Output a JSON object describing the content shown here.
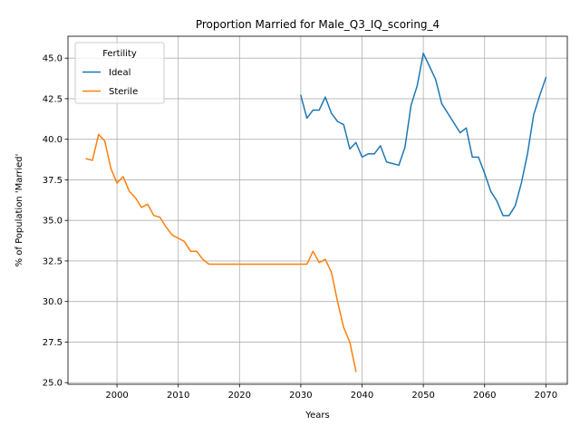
{
  "chart_data": {
    "type": "line",
    "title": "Proportion Married for Male_Q3_IQ_scoring_4",
    "xlabel": "Years",
    "ylabel": "% of Population 'Married'",
    "xlim": [
      1992,
      2073.5
    ],
    "ylim": [
      24.9,
      46.35
    ],
    "grid": true,
    "legend": {
      "title": "Fertility",
      "placement": "top-left"
    },
    "x_ticks": [
      2000,
      2010,
      2020,
      2030,
      2040,
      2050,
      2060,
      2070
    ],
    "y_ticks": [
      25.0,
      27.5,
      30.0,
      32.5,
      35.0,
      37.5,
      40.0,
      42.5,
      45.0
    ],
    "x_tick_labels": [
      "2000",
      "2010",
      "2020",
      "2030",
      "2040",
      "2050",
      "2060",
      "2070"
    ],
    "y_tick_labels": [
      "25.0",
      "27.5",
      "30.0",
      "32.5",
      "35.0",
      "37.5",
      "40.0",
      "42.5",
      "45.0"
    ],
    "series": [
      {
        "name": "Ideal",
        "color": "#1f77b4",
        "x": [
          2030,
          2031,
          2032,
          2033,
          2034,
          2035,
          2036,
          2037,
          2038,
          2039,
          2040,
          2041,
          2042,
          2043,
          2044,
          2045,
          2046,
          2047,
          2048,
          2049,
          2050,
          2051,
          2052,
          2053,
          2054,
          2055,
          2056,
          2057,
          2058,
          2059,
          2060,
          2061,
          2062,
          2063,
          2064,
          2065,
          2066,
          2067,
          2068,
          2069,
          2070
        ],
        "y": [
          42.7,
          41.3,
          41.8,
          41.8,
          42.6,
          41.6,
          41.1,
          40.9,
          39.4,
          39.8,
          38.9,
          39.1,
          39.1,
          39.6,
          38.6,
          38.5,
          38.4,
          39.5,
          42.1,
          43.3,
          45.3,
          44.5,
          43.7,
          42.2,
          41.6,
          41.0,
          40.4,
          40.7,
          38.9,
          38.9,
          37.9,
          36.8,
          36.2,
          35.3,
          35.3,
          35.9,
          37.3,
          39.1,
          41.5,
          42.7,
          43.8
        ]
      },
      {
        "name": "Sterile",
        "color": "#ff7f0e",
        "x": [
          1995,
          1996,
          1997,
          1998,
          1999,
          2000,
          2001,
          2002,
          2003,
          2004,
          2005,
          2006,
          2007,
          2008,
          2009,
          2010,
          2011,
          2012,
          2013,
          2014,
          2015,
          2016,
          2017,
          2018,
          2019,
          2020,
          2021,
          2022,
          2023,
          2024,
          2025,
          2026,
          2027,
          2028,
          2029,
          2030,
          2031,
          2032,
          2033,
          2034,
          2035,
          2036,
          2037,
          2038,
          2039
        ],
        "y": [
          38.8,
          38.7,
          40.3,
          39.9,
          38.2,
          37.3,
          37.7,
          36.8,
          36.4,
          35.8,
          36.0,
          35.3,
          35.2,
          34.6,
          34.1,
          33.9,
          33.7,
          33.1,
          33.1,
          32.6,
          32.3,
          32.3,
          32.3,
          32.3,
          32.3,
          32.3,
          32.3,
          32.3,
          32.3,
          32.3,
          32.3,
          32.3,
          32.3,
          32.3,
          32.3,
          32.3,
          32.3,
          33.1,
          32.4,
          32.6,
          31.8,
          30.0,
          28.4,
          27.5,
          25.7
        ]
      }
    ]
  }
}
